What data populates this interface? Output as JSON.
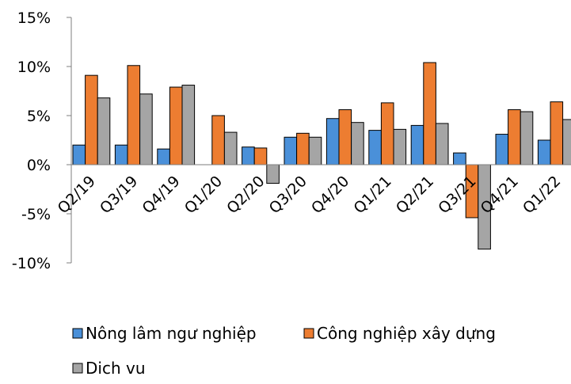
{
  "chart_data": {
    "type": "bar",
    "categories": [
      "Q2/19",
      "Q3/19",
      "Q4/19",
      "Q1/20",
      "Q2/20",
      "Q3/20",
      "Q4/20",
      "Q1/21",
      "Q2/21",
      "Q3/21",
      "Q4/21",
      "Q1/22"
    ],
    "series": [
      {
        "name": "Nông lâm ngư nghiệp",
        "color": "#4A90D9",
        "values": [
          2.0,
          2.0,
          1.6,
          0.0,
          1.8,
          2.8,
          4.7,
          3.5,
          4.0,
          1.2,
          3.1,
          2.5
        ]
      },
      {
        "name": "Công nghiệp xây dựng",
        "color": "#ED7D31",
        "values": [
          9.1,
          10.1,
          7.9,
          5.0,
          1.7,
          3.2,
          5.6,
          6.3,
          10.4,
          -5.4,
          5.6,
          6.4
        ]
      },
      {
        "name": "Dich vu",
        "color": "#A5A5A5",
        "values": [
          6.8,
          7.2,
          8.1,
          3.3,
          -1.9,
          2.8,
          4.3,
          3.6,
          4.2,
          -8.6,
          5.4,
          4.6
        ]
      }
    ],
    "yticks": [
      "15%",
      "10%",
      "5%",
      "0%",
      "-5%",
      "-10%"
    ],
    "ylim": [
      -10,
      15
    ],
    "unit": "%",
    "title": "",
    "xlabel": "",
    "ylabel": "",
    "legend_position": "bottom"
  }
}
